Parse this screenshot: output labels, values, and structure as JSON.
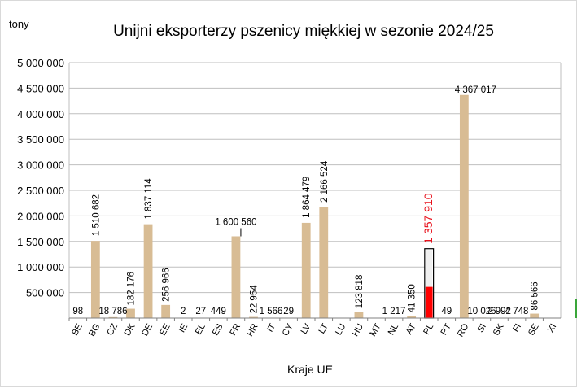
{
  "chart_data": {
    "type": "bar",
    "title": "Unijni eksporterzy pszenicy miękkiej w sezonie 2024/25",
    "unit_label": "tony",
    "xlabel": "Kraje UE",
    "ylabel": "",
    "ylim": [
      0,
      5000000
    ],
    "yticks": [
      0,
      500000,
      1000000,
      1500000,
      2000000,
      2500000,
      3000000,
      3500000,
      4000000,
      4500000,
      5000000
    ],
    "ytick_labels": [
      "",
      "500 000",
      "1 000 000",
      "1 500 000",
      "2 000 000",
      "2 500 000",
      "3 000 000",
      "3 500 000",
      "4 000 000",
      "4 500 000",
      "5 000 000"
    ],
    "grid": true,
    "legend": "none",
    "categories": [
      "BE",
      "BG",
      "CZ",
      "DK",
      "DE",
      "EE",
      "IE",
      "EL",
      "ES",
      "FR",
      "HR",
      "IT",
      "CY",
      "LV",
      "LT",
      "LU",
      "HU",
      "MT",
      "NL",
      "AT",
      "PL",
      "PT",
      "RO",
      "SI",
      "SK",
      "FI",
      "SE",
      "XI"
    ],
    "values": [
      98,
      1510682,
      18786,
      182176,
      1837114,
      256966,
      2,
      27,
      449,
      1600560,
      22954,
      1566,
      29,
      1864479,
      2166524,
      null,
      123818,
      null,
      1217,
      41350,
      1357910,
      49,
      4367017,
      10026,
      2992,
      4748,
      86566,
      null
    ],
    "data_labels": [
      "98",
      "1 510 682",
      "18 786",
      "182 176",
      "1 837 114",
      "256 966",
      "2",
      "27",
      "449",
      "1 600 560",
      "22 954",
      "1 566",
      "29",
      "1 864 479",
      "2 166 524",
      "",
      "123 818",
      "",
      "1 217",
      "41 350",
      "1 357 910",
      "49",
      "4 367 017",
      "10 026",
      "2 992",
      "4 748",
      "86 566",
      ""
    ],
    "highlight": {
      "category": "PL",
      "label_color": "#e8101b",
      "fill_color": "#ff0000",
      "fill_fraction": 0.45
    },
    "colors": {
      "bar": "#d8bc94",
      "grid": "#bfbfbf",
      "axis": "#808080"
    }
  }
}
